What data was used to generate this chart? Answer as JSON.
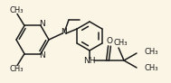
{
  "bg_color": "#faf5e4",
  "line_color": "#1a1a1a",
  "text_color": "#1a1a1a",
  "lw": 1.1,
  "fontsize": 6.5,
  "figsize": [
    1.89,
    0.92
  ],
  "dpi": 100,
  "xlim": [
    0,
    189
  ],
  "ylim": [
    0,
    92
  ]
}
